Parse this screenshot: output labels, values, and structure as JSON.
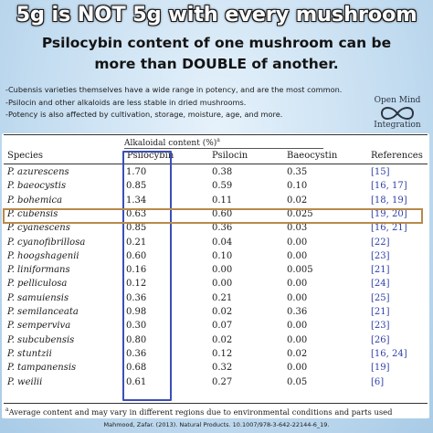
{
  "header": {
    "title": "5g is NOT 5g with every mushroom",
    "subtitle_line1": "Psilocybin content of one mushroom can be",
    "subtitle_line2": "more than DOUBLE of another."
  },
  "bullets": [
    "-Cubensis varieties themselves have a wide range in potency, and are the most common.",
    "-Psilocin and other alkaloids are less stable in dried mushrooms.",
    "-Potency is also affected by cultivation, storage, moisture, age, and more."
  ],
  "logo": {
    "line1": "Open Mind",
    "line2": "Integration",
    "icon": "infinity-icon"
  },
  "table": {
    "group_header": "Alkaloidal content (%)",
    "group_header_sup": "a",
    "columns": {
      "species": "Species",
      "psilocybin": "Psilocybin",
      "psilocin": "Psilocin",
      "baeocystin": "Baeocystin",
      "references": "References"
    },
    "rows": [
      {
        "species": "P. azurescens",
        "psilocybin": "1.70",
        "psilocin": "0.38",
        "baeocystin": "0.35",
        "ref": "[15]"
      },
      {
        "species": "P. baeocystis",
        "psilocybin": "0.85",
        "psilocin": "0.59",
        "baeocystin": "0.10",
        "ref": "[16, 17]"
      },
      {
        "species": "P. bohemica",
        "psilocybin": "1.34",
        "psilocin": "0.11",
        "baeocystin": "0.02",
        "ref": "[18, 19]"
      },
      {
        "species": "P. cubensis",
        "psilocybin": "0.63",
        "psilocin": "0.60",
        "baeocystin": "0.025",
        "ref": "[19, 20]"
      },
      {
        "species": "P. cyanescens",
        "psilocybin": "0.85",
        "psilocin": "0.36",
        "baeocystin": "0.03",
        "ref": "[16, 21]"
      },
      {
        "species": "P. cyanofibrillosa",
        "psilocybin": "0.21",
        "psilocin": "0.04",
        "baeocystin": "0.00",
        "ref": "[22]"
      },
      {
        "species": "P. hoogshagenii",
        "psilocybin": "0.60",
        "psilocin": "0.10",
        "baeocystin": "0.00",
        "ref": "[23]"
      },
      {
        "species": "P. liniformans",
        "psilocybin": "0.16",
        "psilocin": "0.00",
        "baeocystin": "0.005",
        "ref": "[21]"
      },
      {
        "species": "P. pelliculosa",
        "psilocybin": "0.12",
        "psilocin": "0.00",
        "baeocystin": "0.00",
        "ref": "[24]"
      },
      {
        "species": "P. samuiensis",
        "psilocybin": "0.36",
        "psilocin": "0.21",
        "baeocystin": "0.00",
        "ref": "[25]"
      },
      {
        "species": "P. semilanceata",
        "psilocybin": "0.98",
        "psilocin": "0.02",
        "baeocystin": "0.36",
        "ref": "[21]"
      },
      {
        "species": "P. semperviva",
        "psilocybin": "0.30",
        "psilocin": "0.07",
        "baeocystin": "0.00",
        "ref": "[23]"
      },
      {
        "species": "P. subcubensis",
        "psilocybin": "0.80",
        "psilocin": "0.02",
        "baeocystin": "0.00",
        "ref": "[26]"
      },
      {
        "species": "P. stuntzii",
        "psilocybin": "0.36",
        "psilocin": "0.12",
        "baeocystin": "0.02",
        "ref": "[16, 24]"
      },
      {
        "species": "P. tampanensis",
        "psilocybin": "0.68",
        "psilocin": "0.32",
        "baeocystin": "0.00",
        "ref": "[19]"
      },
      {
        "species": "P. weilii",
        "psilocybin": "0.61",
        "psilocin": "0.27",
        "baeocystin": "0.05",
        "ref": "[6]"
      }
    ],
    "footnote_sup": "a",
    "footnote": "Average content and may vary in different regions due to environmental conditions and parts used"
  },
  "citation": "Mahmood, Zafar. (2013). Natural Products. 10.1007/978-3-642-22144-6_19.",
  "colors": {
    "psilocybin_box": "#3b4fb8",
    "cubensis_highlight": "#b8894a",
    "reference_link": "#2f3fa6"
  }
}
